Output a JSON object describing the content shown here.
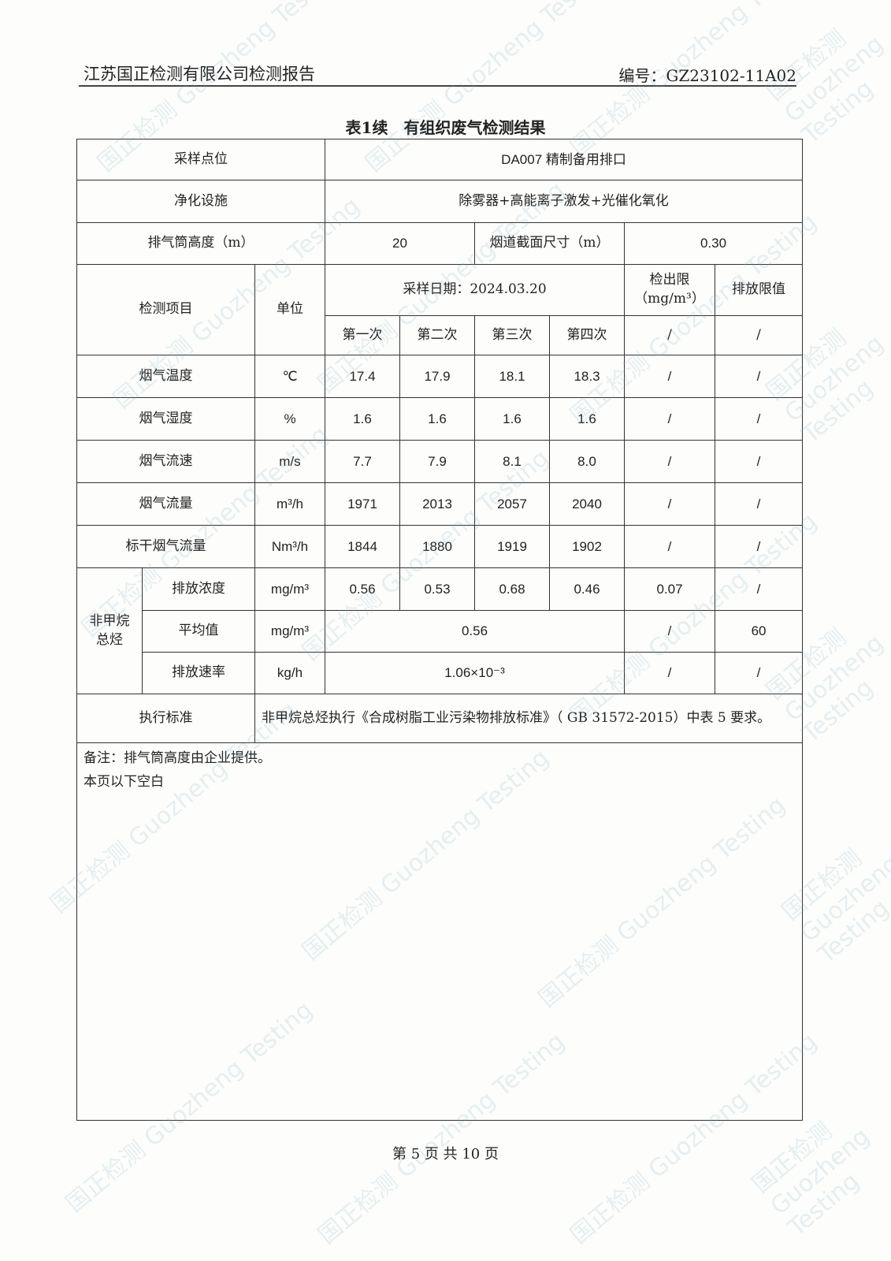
{
  "header": {
    "company": "江苏国正检测有限公司检测报告",
    "report_no": "编号：GZ23102-11A02"
  },
  "title": "表1续　有组织废气检测结果",
  "site": {
    "label": "采样点位",
    "value": "DA007 精制备用排口"
  },
  "facility": {
    "label": "净化设施",
    "value": "除雾器+高能离子激发+光催化氧化"
  },
  "stack": {
    "height_label": "排气筒高度（m）",
    "height_value": "20",
    "section_label": "烟道截面尺寸（m）",
    "section_value": "0.30"
  },
  "columns": {
    "item": "检测项目",
    "unit": "单位",
    "date": "采样日期：2024.03.20",
    "detect_limit": "检出限（mg/m³）",
    "emission_limit": "排放限值",
    "runs": [
      "第一次",
      "第二次",
      "第三次",
      "第四次"
    ],
    "slash": "/"
  },
  "rows": [
    {
      "name": "烟气温度",
      "unit": "℃",
      "values": [
        "17.4",
        "17.9",
        "18.1",
        "18.3"
      ],
      "dl": "/",
      "el": "/"
    },
    {
      "name": "烟气湿度",
      "unit": "%",
      "values": [
        "1.6",
        "1.6",
        "1.6",
        "1.6"
      ],
      "dl": "/",
      "el": "/"
    },
    {
      "name": "烟气流速",
      "unit": "m/s",
      "values": [
        "7.7",
        "7.9",
        "8.1",
        "8.0"
      ],
      "dl": "/",
      "el": "/"
    },
    {
      "name": "烟气流量",
      "unit": "m³/h",
      "values": [
        "1971",
        "2013",
        "2057",
        "2040"
      ],
      "dl": "/",
      "el": "/"
    },
    {
      "name": "标干烟气流量",
      "unit": "Nm³/h",
      "values": [
        "1844",
        "1880",
        "1919",
        "1902"
      ],
      "dl": "/",
      "el": "/"
    }
  ],
  "nmhc": {
    "name": "非甲烷总烃",
    "conc": {
      "name": "排放浓度",
      "unit": "mg/m³",
      "values": [
        "0.56",
        "0.53",
        "0.68",
        "0.46"
      ],
      "dl": "0.07",
      "el": "/"
    },
    "avg": {
      "name": "平均值",
      "unit": "mg/m³",
      "value": "0.56",
      "dl": "/",
      "el": "60"
    },
    "rate": {
      "name": "排放速率",
      "unit": "kg/h",
      "value": "1.06×10⁻³",
      "dl": "/",
      "el": "/"
    }
  },
  "standard": {
    "label": "执行标准",
    "text": "非甲烷总烃执行《合成树脂工业污染物排放标准》（ GB 31572-2015）中表 5 要求。"
  },
  "notes": [
    "备注：排气筒高度由企业提供。",
    "本页以下空白"
  ],
  "footer": "第 5 页 共 10 页",
  "watermark": "国正检测 Guozheng Testing"
}
